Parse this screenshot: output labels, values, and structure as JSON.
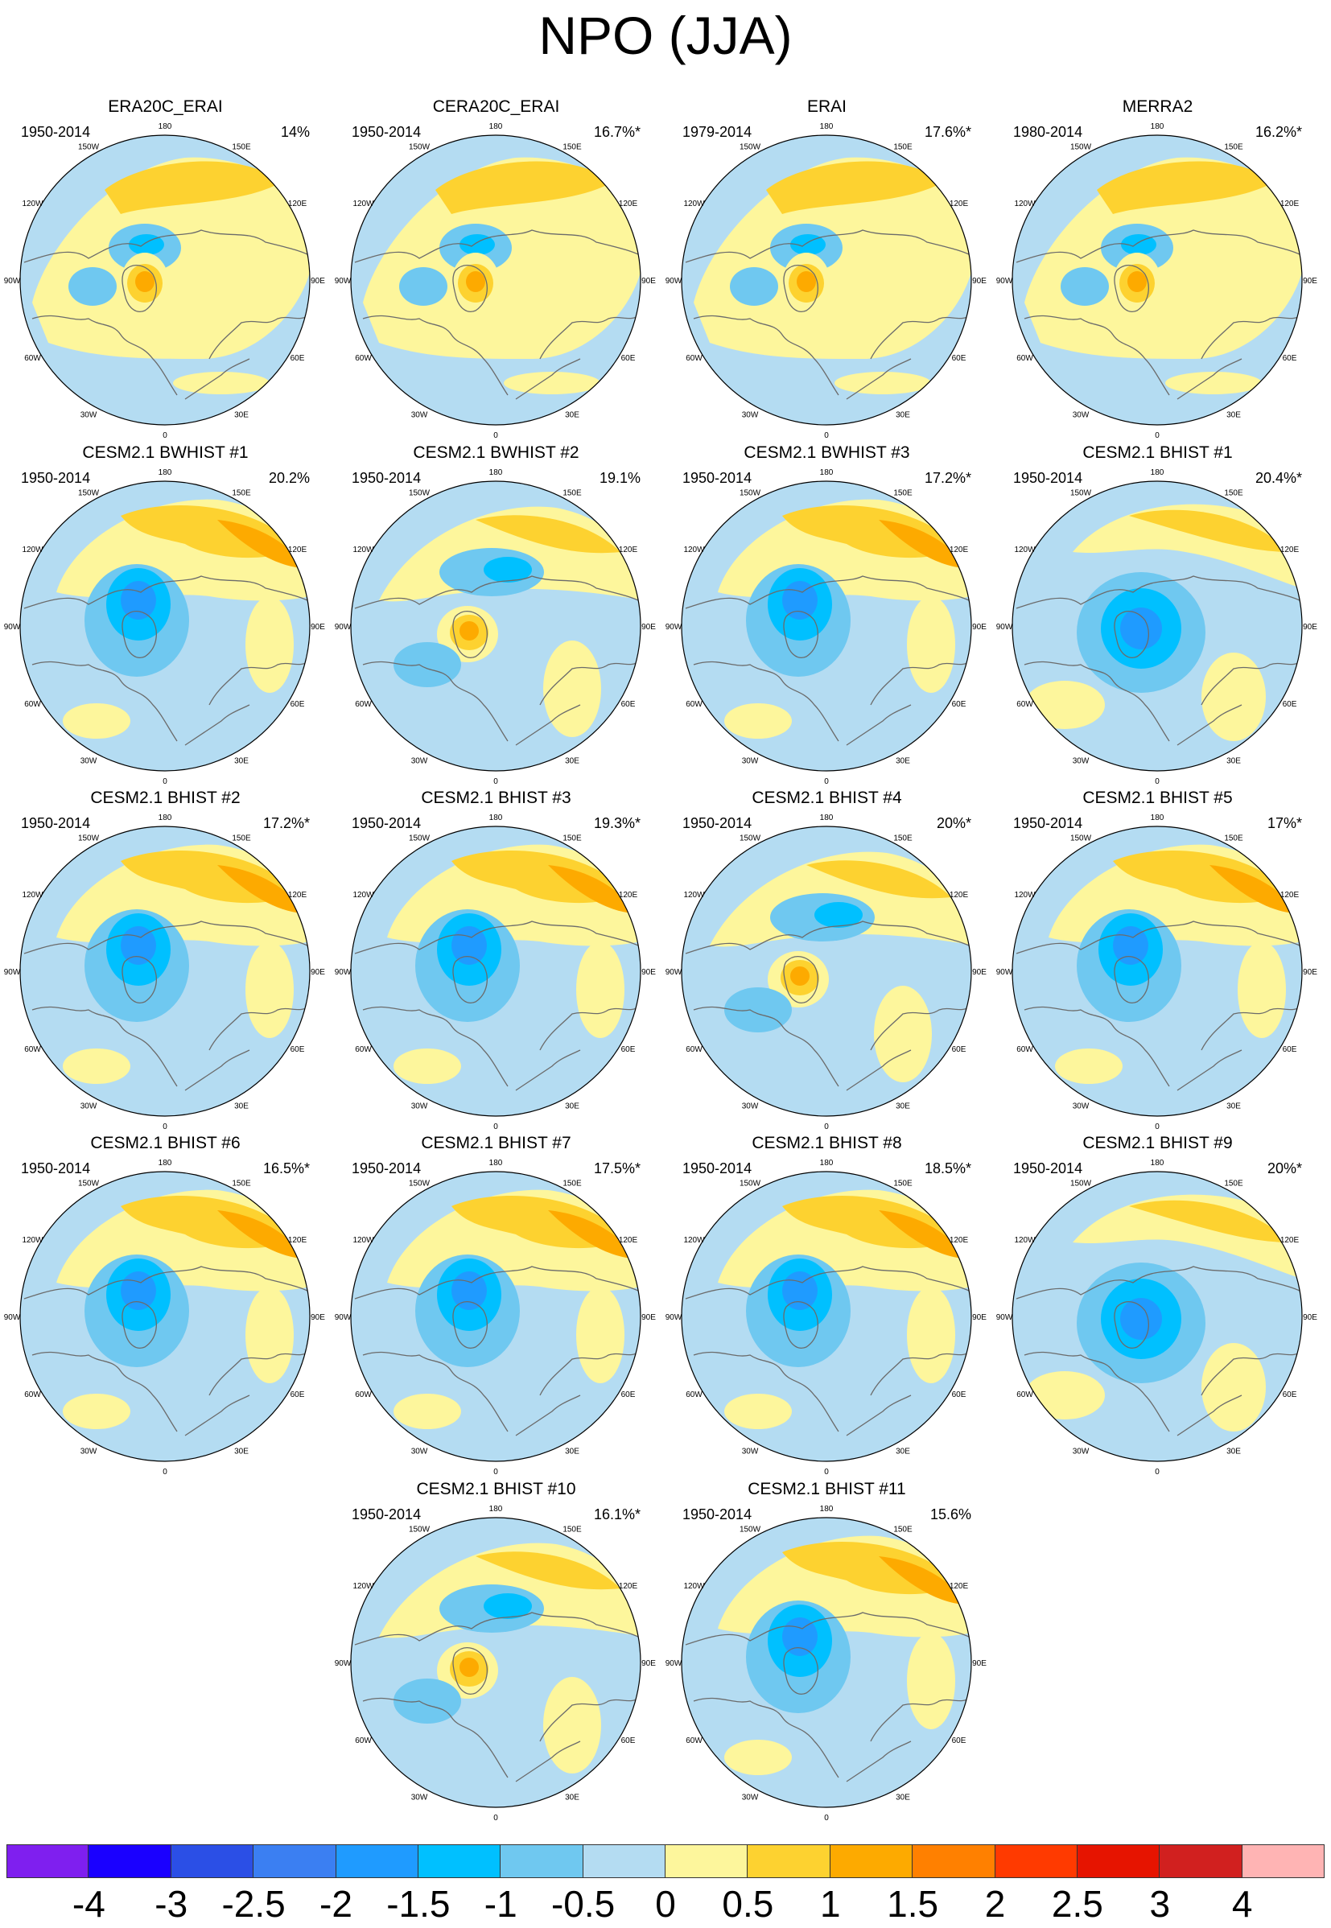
{
  "title": "NPO (JJA)",
  "lon_labels": [
    "180",
    "150E",
    "120E",
    "90E",
    "60E",
    "30E",
    "0",
    "30W",
    "60W",
    "90W",
    "120W",
    "150W"
  ],
  "colors": {
    "ocean": "#b4dcf2",
    "coast": "#6b6b6b",
    "levels": [
      "#7f1fef",
      "#1a00ff",
      "#2b4fe6",
      "#3b7ff2",
      "#1f9bff",
      "#00c0ff",
      "#6fc8f0",
      "#b4dcf2",
      "#fdf69c",
      "#fdd230",
      "#fdaa00",
      "#ff8000",
      "#ff3a00",
      "#e61400",
      "#d1201f",
      "#ffb4b4"
    ]
  },
  "chart_data": {
    "type": "heatmap",
    "projection": "north polar stereographic",
    "colorbar": {
      "tick_labels": [
        "-4",
        "-3",
        "-2.5",
        "-2",
        "-1.5",
        "-1",
        "-0.5",
        "0",
        "0.5",
        "1",
        "1.5",
        "2",
        "2.5",
        "3",
        "4"
      ]
    },
    "panels": [
      {
        "title": "ERA20C_ERAI",
        "period": "1950-2014",
        "variance": "14%",
        "pattern": "A"
      },
      {
        "title": "CERA20C_ERAI",
        "period": "1950-2014",
        "variance": "16.7%*",
        "pattern": "A"
      },
      {
        "title": "ERAI",
        "period": "1979-2014",
        "variance": "17.6%*",
        "pattern": "A"
      },
      {
        "title": "MERRA2",
        "period": "1980-2014",
        "variance": "16.2%*",
        "pattern": "A"
      },
      {
        "title": "CESM2.1 BWHIST #1",
        "period": "1950-2014",
        "variance": "20.2%",
        "pattern": "B"
      },
      {
        "title": "CESM2.1 BWHIST #2",
        "period": "1950-2014",
        "variance": "19.1%",
        "pattern": "C"
      },
      {
        "title": "CESM2.1 BWHIST #3",
        "period": "1950-2014",
        "variance": "17.2%*",
        "pattern": "B"
      },
      {
        "title": "CESM2.1 BHIST #1",
        "period": "1950-2014",
        "variance": "20.4%*",
        "pattern": "D"
      },
      {
        "title": "CESM2.1 BHIST #2",
        "period": "1950-2014",
        "variance": "17.2%*",
        "pattern": "B"
      },
      {
        "title": "CESM2.1 BHIST #3",
        "period": "1950-2014",
        "variance": "19.3%*",
        "pattern": "B"
      },
      {
        "title": "CESM2.1 BHIST #4",
        "period": "1950-2014",
        "variance": "20%*",
        "pattern": "C"
      },
      {
        "title": "CESM2.1 BHIST #5",
        "period": "1950-2014",
        "variance": "17%*",
        "pattern": "B"
      },
      {
        "title": "CESM2.1 BHIST #6",
        "period": "1950-2014",
        "variance": "16.5%*",
        "pattern": "B"
      },
      {
        "title": "CESM2.1 BHIST #7",
        "period": "1950-2014",
        "variance": "17.5%*",
        "pattern": "B"
      },
      {
        "title": "CESM2.1 BHIST #8",
        "period": "1950-2014",
        "variance": "18.5%*",
        "pattern": "B"
      },
      {
        "title": "CESM2.1 BHIST #9",
        "period": "1950-2014",
        "variance": "20%*",
        "pattern": "D"
      },
      {
        "title": "CESM2.1 BHIST #10",
        "period": "1950-2014",
        "variance": "16.1%*",
        "pattern": "C"
      },
      {
        "title": "CESM2.1 BHIST #11",
        "period": "1950-2014",
        "variance": "15.6%",
        "pattern": "B"
      }
    ]
  }
}
